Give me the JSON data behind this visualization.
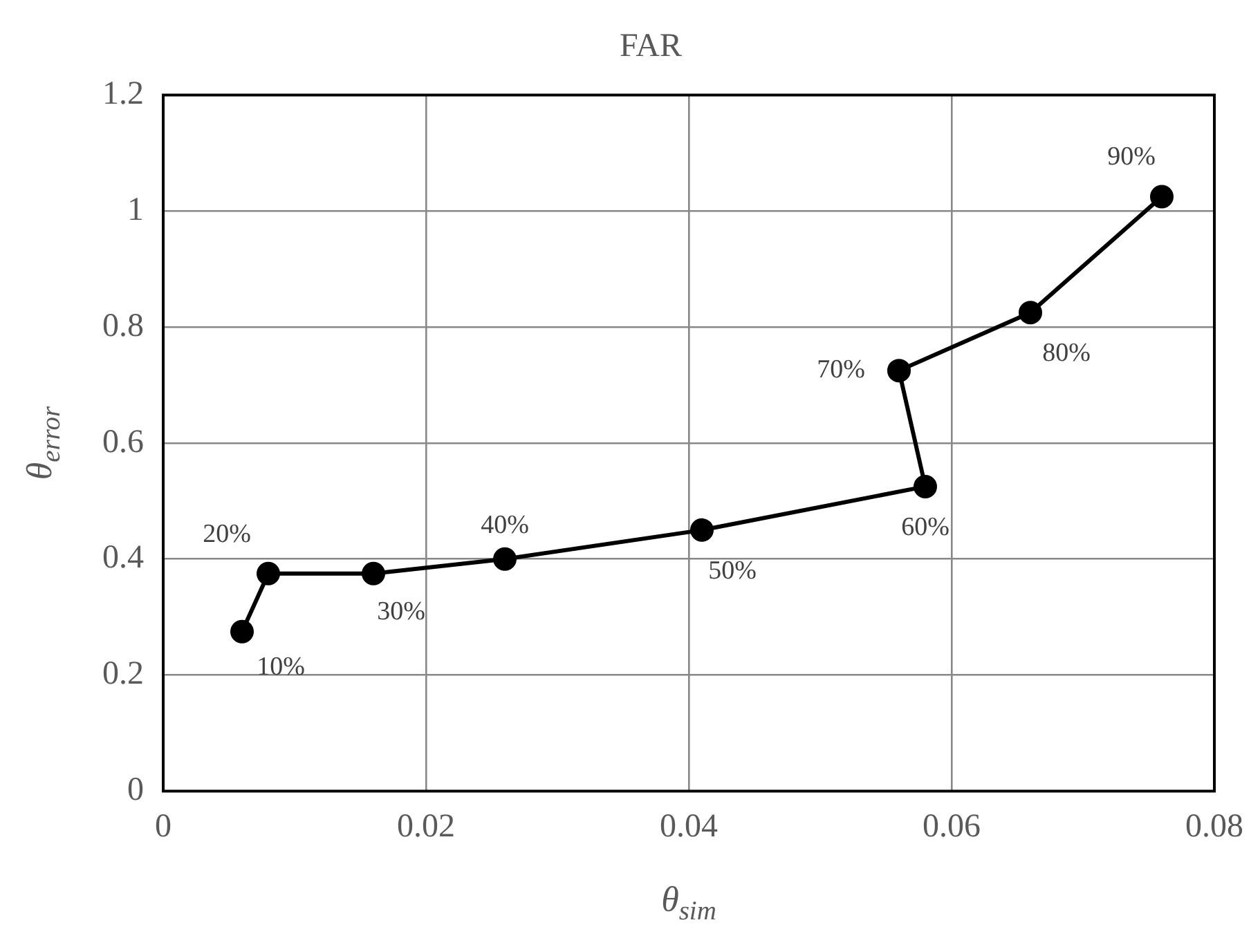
{
  "chart_data": {
    "type": "line",
    "title": "FAR",
    "xlabel": "θ$_{sim}$",
    "ylabel": "θ$_{error}$",
    "x": [
      0.006,
      0.008,
      0.016,
      0.026,
      0.041,
      0.058,
      0.056,
      0.066,
      0.076
    ],
    "series": [
      {
        "color": "#000000",
        "values": [
          0.275,
          0.375,
          0.375,
          0.4,
          0.45,
          0.525,
          0.725,
          0.825,
          1.025
        ]
      }
    ],
    "annotations": [
      {
        "text": "10%",
        "x": 0.006,
        "y": 0.275
      },
      {
        "text": "20%",
        "x": 0.008,
        "y": 0.375
      },
      {
        "text": "30%",
        "x": 0.016,
        "y": 0.375
      },
      {
        "text": "40%",
        "x": 0.026,
        "y": 0.4
      },
      {
        "text": "50%",
        "x": 0.041,
        "y": 0.45
      },
      {
        "text": "60%",
        "x": 0.058,
        "y": 0.525
      },
      {
        "text": "70%",
        "x": 0.056,
        "y": 0.725
      },
      {
        "text": "80%",
        "x": 0.066,
        "y": 0.825
      },
      {
        "text": "90%",
        "x": 0.076,
        "y": 1.025
      }
    ],
    "xlim": [
      0,
      0.08
    ],
    "xticks": [
      0,
      0.02,
      0.04,
      0.06,
      0.08
    ],
    "ylim": [
      0,
      1.2
    ],
    "yticks": [
      0,
      0.2,
      0.4,
      0.6,
      0.8,
      1,
      1.2
    ],
    "grid": true,
    "marker": "circle",
    "line_style": "solid",
    "legend": false
  }
}
